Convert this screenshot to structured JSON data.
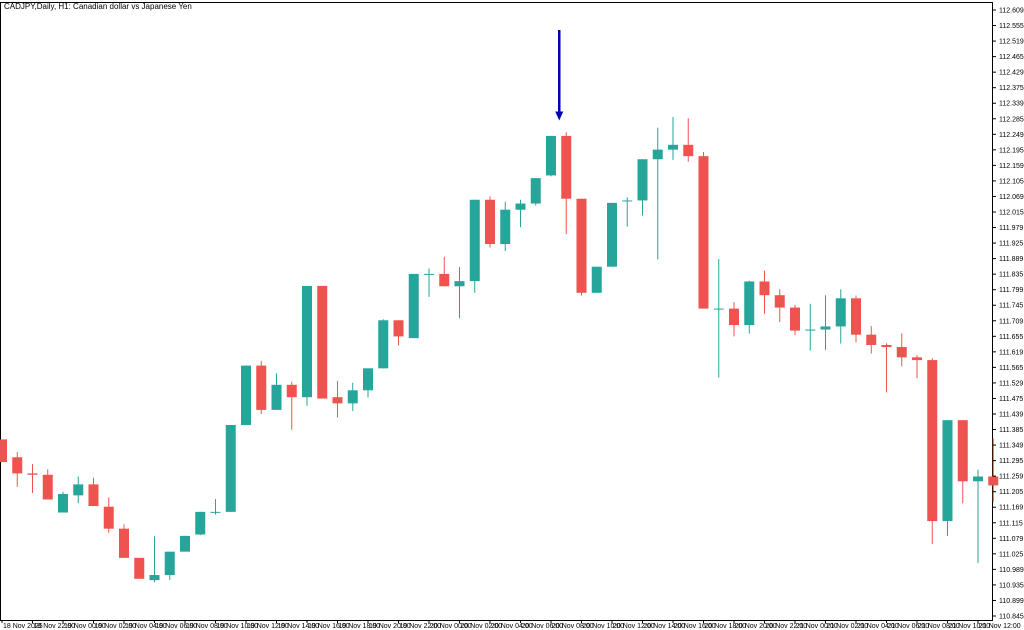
{
  "chart_data": {
    "type": "candlestick",
    "title": "CADJPY,Daily, H1:  Canadian dollar vs Japanese Yen",
    "ylim": [
      110.845,
      112.645
    ],
    "y_ticks": [
      "112.609",
      "112.555",
      "112.519",
      "112.465",
      "112.429",
      "112.375",
      "112.339",
      "112.285",
      "112.249",
      "112.195",
      "112.159",
      "112.105",
      "112.069",
      "112.015",
      "111.979",
      "111.925",
      "111.889",
      "111.835",
      "111.799",
      "111.745",
      "111.709",
      "111.655",
      "111.619",
      "111.565",
      "111.529",
      "111.475",
      "111.439",
      "111.385",
      "111.349",
      "111.295",
      "111.259",
      "111.205",
      "111.169",
      "111.115",
      "111.079",
      "111.025",
      "110.989",
      "110.935",
      "110.899",
      "110.845"
    ],
    "x_ticks": [
      "18 Nov 2025",
      "18 Nov 22:00",
      "19 Nov 00:00",
      "19 Nov 02:00",
      "19 Nov 04:00",
      "19 Nov 06:00",
      "19 Nov 08:00",
      "19 Nov 10:00",
      "19 Nov 12:00",
      "19 Nov 14:00",
      "19 Nov 16:00",
      "19 Nov 18:00",
      "19 Nov 20:00",
      "19 Nov 22:00",
      "20 Nov 00:00",
      "20 Nov 02:00",
      "20 Nov 04:00",
      "20 Nov 06:00",
      "20 Nov 08:00",
      "20 Nov 10:00",
      "20 Nov 12:00",
      "20 Nov 14:00",
      "20 Nov 16:00",
      "20 Nov 18:00",
      "20 Nov 20:00",
      "20 Nov 22:00",
      "21 Nov 00:00",
      "21 Nov 02:00",
      "21 Nov 04:00",
      "21 Nov 06:00",
      "21 Nov 08:00",
      "21 Nov 10:00",
      "21 Nov 12:00"
    ],
    "candles": [
      {
        "o": 111.371,
        "h": 111.371,
        "l": 111.305,
        "c": 111.305
      },
      {
        "o": 111.319,
        "h": 111.334,
        "l": 111.233,
        "c": 111.272
      },
      {
        "o": 111.272,
        "h": 111.299,
        "l": 111.215,
        "c": 111.268
      },
      {
        "o": 111.268,
        "h": 111.284,
        "l": 111.196,
        "c": 111.196
      },
      {
        "o": 111.158,
        "h": 111.218,
        "l": 111.158,
        "c": 111.212
      },
      {
        "o": 111.208,
        "h": 111.263,
        "l": 111.185,
        "c": 111.24
      },
      {
        "o": 111.24,
        "h": 111.259,
        "l": 111.177,
        "c": 111.177
      },
      {
        "o": 111.175,
        "h": 111.202,
        "l": 111.099,
        "c": 111.111
      },
      {
        "o": 111.111,
        "h": 111.124,
        "l": 111.026,
        "c": 111.026
      },
      {
        "o": 111.026,
        "h": 111.026,
        "l": 110.965,
        "c": 110.965
      },
      {
        "o": 110.961,
        "h": 111.089,
        "l": 110.955,
        "c": 110.976
      },
      {
        "o": 110.976,
        "h": 111.044,
        "l": 110.962,
        "c": 111.044
      },
      {
        "o": 111.044,
        "h": 111.09,
        "l": 111.044,
        "c": 111.09
      },
      {
        "o": 111.094,
        "h": 111.16,
        "l": 111.092,
        "c": 111.16
      },
      {
        "o": 111.16,
        "h": 111.197,
        "l": 111.152,
        "c": 111.16
      },
      {
        "o": 111.16,
        "h": 111.413,
        "l": 111.16,
        "c": 111.413
      },
      {
        "o": 111.413,
        "h": 111.586,
        "l": 111.413,
        "c": 111.586
      },
      {
        "o": 111.586,
        "h": 111.6,
        "l": 111.445,
        "c": 111.457
      },
      {
        "o": 111.457,
        "h": 111.563,
        "l": 111.457,
        "c": 111.53
      },
      {
        "o": 111.53,
        "h": 111.539,
        "l": 111.399,
        "c": 111.494
      },
      {
        "o": 111.494,
        "h": 111.818,
        "l": 111.469,
        "c": 111.818
      },
      {
        "o": 111.818,
        "h": 111.818,
        "l": 111.49,
        "c": 111.49
      },
      {
        "o": 111.494,
        "h": 111.541,
        "l": 111.435,
        "c": 111.476
      },
      {
        "o": 111.476,
        "h": 111.536,
        "l": 111.454,
        "c": 111.514
      },
      {
        "o": 111.514,
        "h": 111.578,
        "l": 111.493,
        "c": 111.578
      },
      {
        "o": 111.578,
        "h": 111.721,
        "l": 111.578,
        "c": 111.718
      },
      {
        "o": 111.718,
        "h": 111.718,
        "l": 111.645,
        "c": 111.671
      },
      {
        "o": 111.666,
        "h": 111.853,
        "l": 111.666,
        "c": 111.853
      },
      {
        "o": 111.853,
        "h": 111.869,
        "l": 111.786,
        "c": 111.853
      },
      {
        "o": 111.853,
        "h": 111.903,
        "l": 111.817,
        "c": 111.817
      },
      {
        "o": 111.817,
        "h": 111.873,
        "l": 111.724,
        "c": 111.832
      },
      {
        "o": 111.832,
        "h": 112.069,
        "l": 111.798,
        "c": 112.069
      },
      {
        "o": 112.069,
        "h": 112.079,
        "l": 111.93,
        "c": 111.94
      },
      {
        "o": 111.94,
        "h": 112.063,
        "l": 111.92,
        "c": 112.04
      },
      {
        "o": 112.04,
        "h": 112.069,
        "l": 111.989,
        "c": 112.058
      },
      {
        "o": 112.058,
        "h": 112.132,
        "l": 112.052,
        "c": 112.132
      },
      {
        "o": 112.14,
        "h": 112.255,
        "l": 112.137,
        "c": 112.255
      },
      {
        "o": 112.255,
        "h": 112.265,
        "l": 111.969,
        "c": 112.072
      },
      {
        "o": 112.072,
        "h": 112.072,
        "l": 111.79,
        "c": 111.798
      },
      {
        "o": 111.798,
        "h": 111.874,
        "l": 111.798,
        "c": 111.874
      },
      {
        "o": 111.874,
        "h": 112.06,
        "l": 111.874,
        "c": 112.06
      },
      {
        "o": 112.067,
        "h": 112.076,
        "l": 111.991,
        "c": 112.067
      },
      {
        "o": 112.067,
        "h": 112.187,
        "l": 112.023,
        "c": 112.187
      },
      {
        "o": 112.187,
        "h": 112.279,
        "l": 111.895,
        "c": 112.215
      },
      {
        "o": 112.215,
        "h": 112.31,
        "l": 112.185,
        "c": 112.229
      },
      {
        "o": 112.229,
        "h": 112.306,
        "l": 112.18,
        "c": 112.196
      },
      {
        "o": 112.196,
        "h": 112.208,
        "l": 111.752,
        "c": 111.752
      },
      {
        "o": 111.752,
        "h": 111.896,
        "l": 111.551,
        "c": 111.752
      },
      {
        "o": 111.752,
        "h": 111.771,
        "l": 111.671,
        "c": 111.704
      },
      {
        "o": 111.704,
        "h": 111.833,
        "l": 111.679,
        "c": 111.831
      },
      {
        "o": 111.831,
        "h": 111.863,
        "l": 111.737,
        "c": 111.791
      },
      {
        "o": 111.791,
        "h": 111.808,
        "l": 111.713,
        "c": 111.755
      },
      {
        "o": 111.755,
        "h": 111.763,
        "l": 111.675,
        "c": 111.688
      },
      {
        "o": 111.688,
        "h": 111.766,
        "l": 111.63,
        "c": 111.691
      },
      {
        "o": 111.691,
        "h": 111.791,
        "l": 111.631,
        "c": 111.7
      },
      {
        "o": 111.7,
        "h": 111.808,
        "l": 111.65,
        "c": 111.782
      },
      {
        "o": 111.782,
        "h": 111.79,
        "l": 111.654,
        "c": 111.676
      },
      {
        "o": 111.676,
        "h": 111.701,
        "l": 111.621,
        "c": 111.646
      },
      {
        "o": 111.646,
        "h": 111.651,
        "l": 111.508,
        "c": 111.64
      },
      {
        "o": 111.64,
        "h": 111.68,
        "l": 111.584,
        "c": 111.61
      },
      {
        "o": 111.61,
        "h": 111.616,
        "l": 111.549,
        "c": 111.602
      },
      {
        "o": 111.602,
        "h": 111.607,
        "l": 111.066,
        "c": 111.133
      },
      {
        "o": 111.133,
        "h": 111.427,
        "l": 111.09,
        "c": 111.427
      },
      {
        "o": 111.427,
        "h": 111.427,
        "l": 111.185,
        "c": 111.249
      },
      {
        "o": 111.249,
        "h": 111.283,
        "l": 111.011,
        "c": 111.263
      },
      {
        "o": 111.263,
        "h": 111.374,
        "l": 111.188,
        "c": 111.237
      }
    ],
    "colors": {
      "bull": "#26a69a",
      "bear": "#ef5350",
      "grid": "#c8c8c8",
      "axis": "#000000",
      "arrow": "#0000b4"
    },
    "annotation": {
      "type": "arrow",
      "candle_index": 37,
      "direction": "down"
    }
  }
}
